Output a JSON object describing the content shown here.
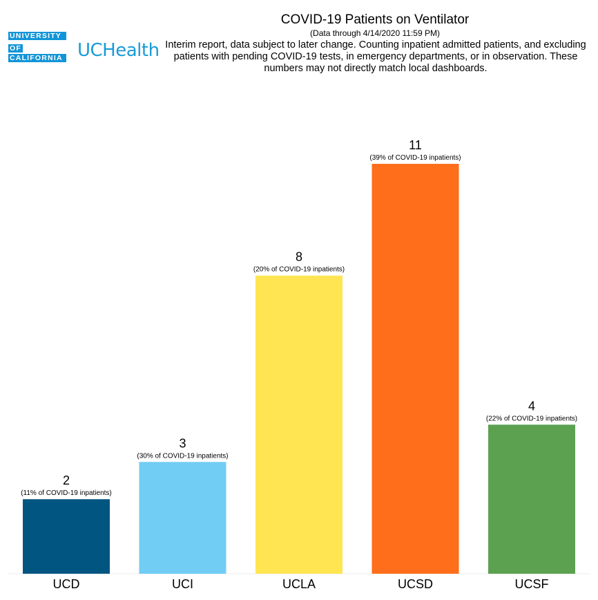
{
  "logo": {
    "line1": "UNIVERSITY",
    "line2": "OF",
    "line3": "CALIFORNIA",
    "brand": "UCHealth"
  },
  "header": {
    "title": "COVID-19 Patients on Ventilator",
    "subtitle": "(Data through 4/14/2020 11:59 PM)",
    "note": "Interim report, data subject to later change. Counting inpatient admitted patients, and excluding patients with pending COVID-19 tests, in emergency departments, or in observation.  These numbers may not directly match local dashboards."
  },
  "chart_data": {
    "type": "bar",
    "title": "COVID-19 Patients on Ventilator",
    "xlabel": "",
    "ylabel": "",
    "ylim": [
      0,
      12
    ],
    "grid": false,
    "categories": [
      "UCD",
      "UCI",
      "UCLA",
      "UCSD",
      "UCSF"
    ],
    "values": [
      2,
      3,
      8,
      11,
      4
    ],
    "pct_labels": [
      "(11% of COVID-19 inpatients)",
      "(30% of COVID-19 inpatients)",
      "(20% of COVID-19 inpatients)",
      "(39% of COVID-19 inpatients)",
      "(22% of COVID-19 inpatients)"
    ],
    "colors": [
      "#005581",
      "#72cdf4",
      "#ffe552",
      "#ff6e1b",
      "#5ba150"
    ]
  }
}
